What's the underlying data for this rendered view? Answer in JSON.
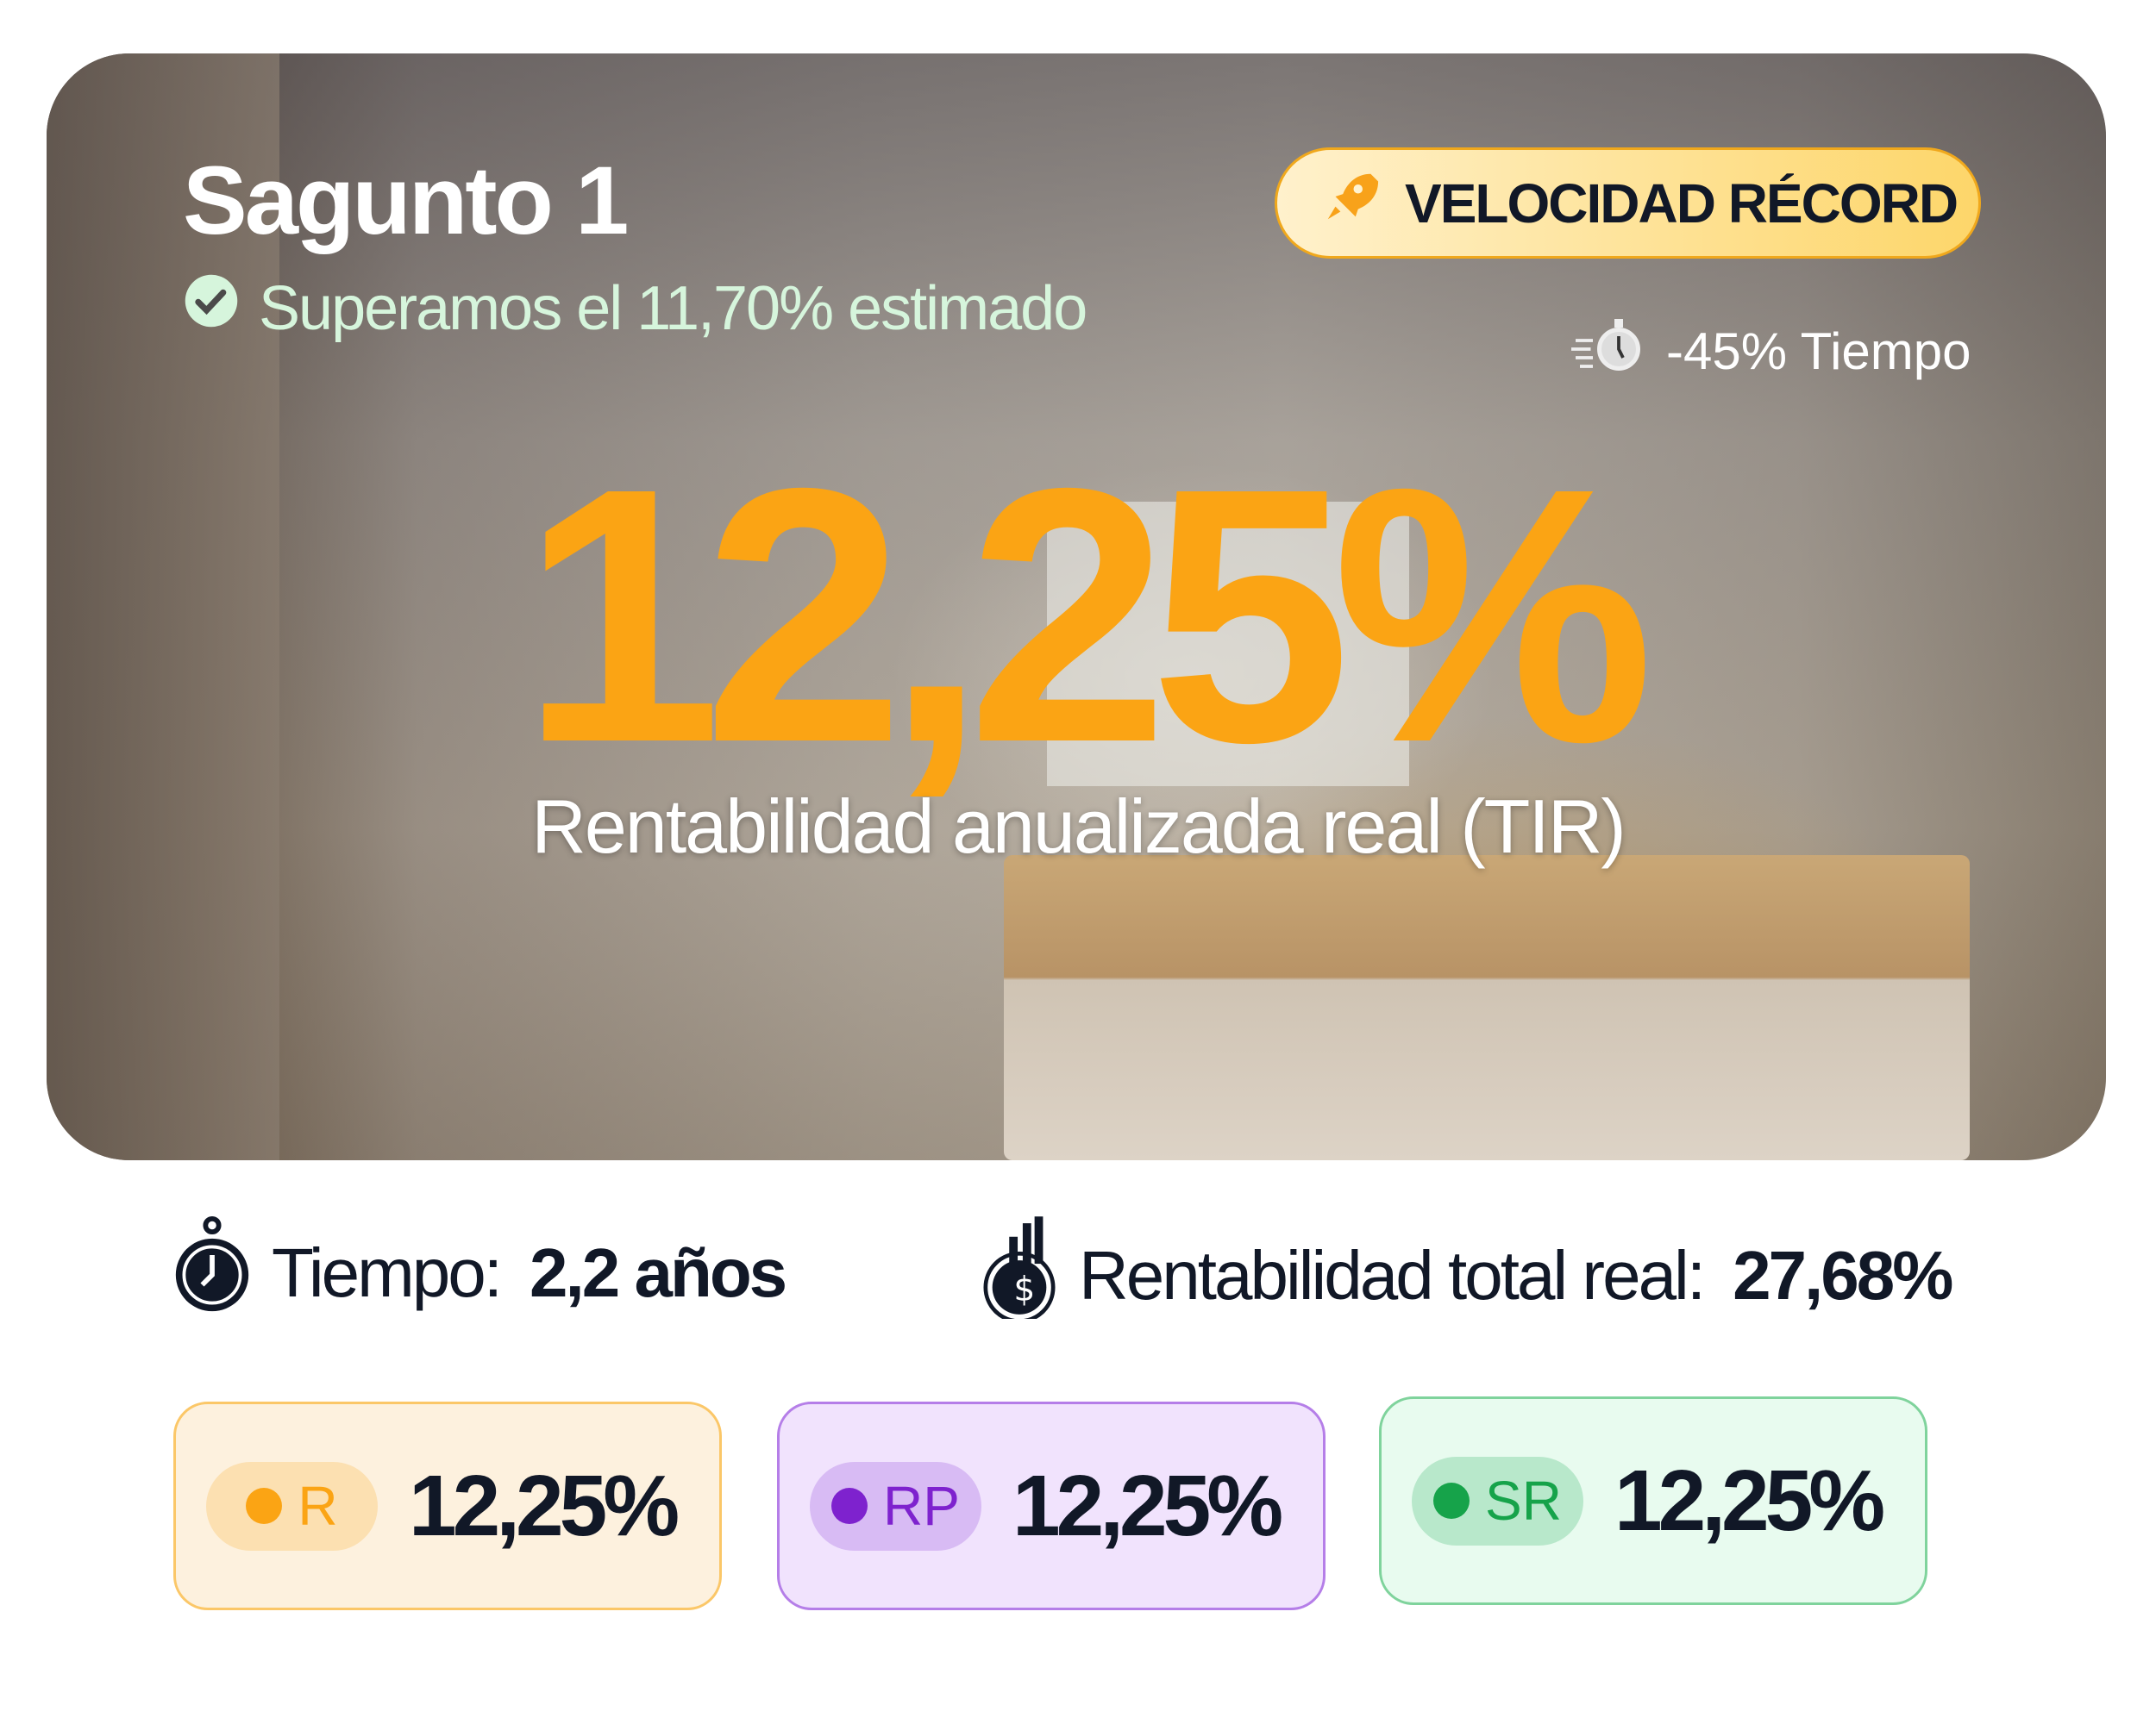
{
  "hero": {
    "title": "Sagunto 1",
    "subtitle": "Superamos el 11,70% estimado",
    "badge": "VELOCIDAD RÉCORD",
    "speed_text": "-45% Tiempo",
    "main_value": "12,25%",
    "main_label": "Rentabilidad anualizada real (TIR)"
  },
  "stats": {
    "time_label": "Tiempo:",
    "time_value": "2,2 años",
    "total_label": "Rentabilidad total real:",
    "total_value": "27,68%"
  },
  "boxes": [
    {
      "tag": "R",
      "value": "12,25%",
      "color": "#fba414"
    },
    {
      "tag": "RP",
      "value": "12,25%",
      "color": "#7e22ce"
    },
    {
      "tag": "SR",
      "value": "12,25%",
      "color": "#16a34a"
    }
  ]
}
